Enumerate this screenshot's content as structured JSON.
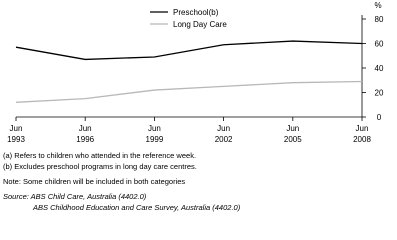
{
  "chart_data": {
    "type": "line",
    "y_axis_label": "%",
    "categories": [
      "Jun 1993",
      "Jun 1996",
      "Jun 1999",
      "Jun 2002",
      "Jun 2005",
      "Jun 2008"
    ],
    "series": [
      {
        "name": "Preschool(b)",
        "color": "#000000",
        "values": [
          57,
          47,
          49,
          59,
          62,
          60
        ]
      },
      {
        "name": "Long Day Care",
        "color": "#b8b8b8",
        "values": [
          12,
          15,
          22,
          25,
          28,
          29
        ]
      }
    ],
    "ylim": [
      0,
      80
    ],
    "yticks": [
      0,
      20,
      40,
      60,
      80
    ],
    "grid": false,
    "legend_position": "top",
    "notes": [
      "(a) Refers to children who attended in the reference week.",
      "(b) Excludes preschool programs in long day care centres.",
      "Note: Some children will be included in both categories",
      "Source: ABS Child Care, Australia (4402.0)",
      "ABS Childhood Education and Care Survey, Australia (4402.0)"
    ]
  }
}
